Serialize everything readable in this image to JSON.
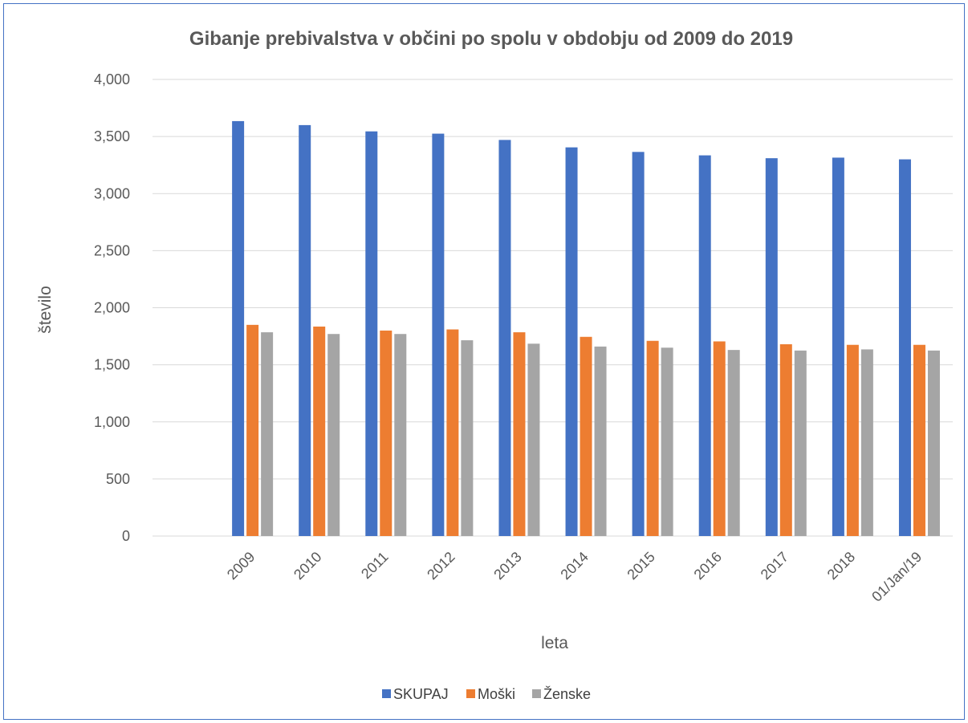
{
  "chart_data": {
    "type": "bar",
    "title": "Gibanje prebivalstva v občini po spolu v obdobju od 2009 do 2019",
    "xlabel": "leta",
    "ylabel": "število",
    "ylim": [
      0,
      4000
    ],
    "yticks": [
      "0",
      "500",
      "1,000",
      "1,500",
      "2,000",
      "2,500",
      "3,000",
      "3,500",
      "4,000"
    ],
    "grid": true,
    "legend_position": "bottom",
    "categories": [
      "2009",
      "2010",
      "2011",
      "2012",
      "2013",
      "2014",
      "2015",
      "2016",
      "2017",
      "2018",
      "01/Jan/19"
    ],
    "series": [
      {
        "name": "SKUPAJ",
        "color": "#4472c4",
        "values": [
          3635,
          3600,
          3545,
          3525,
          3470,
          3405,
          3365,
          3335,
          3310,
          3315,
          3300
        ]
      },
      {
        "name": "Moški",
        "color": "#ed7d31",
        "values": [
          1850,
          1835,
          1800,
          1810,
          1785,
          1745,
          1710,
          1705,
          1680,
          1675,
          1675
        ]
      },
      {
        "name": "Ženske",
        "color": "#a5a5a5",
        "values": [
          1785,
          1770,
          1770,
          1715,
          1685,
          1660,
          1650,
          1630,
          1625,
          1635,
          1625
        ]
      }
    ]
  }
}
